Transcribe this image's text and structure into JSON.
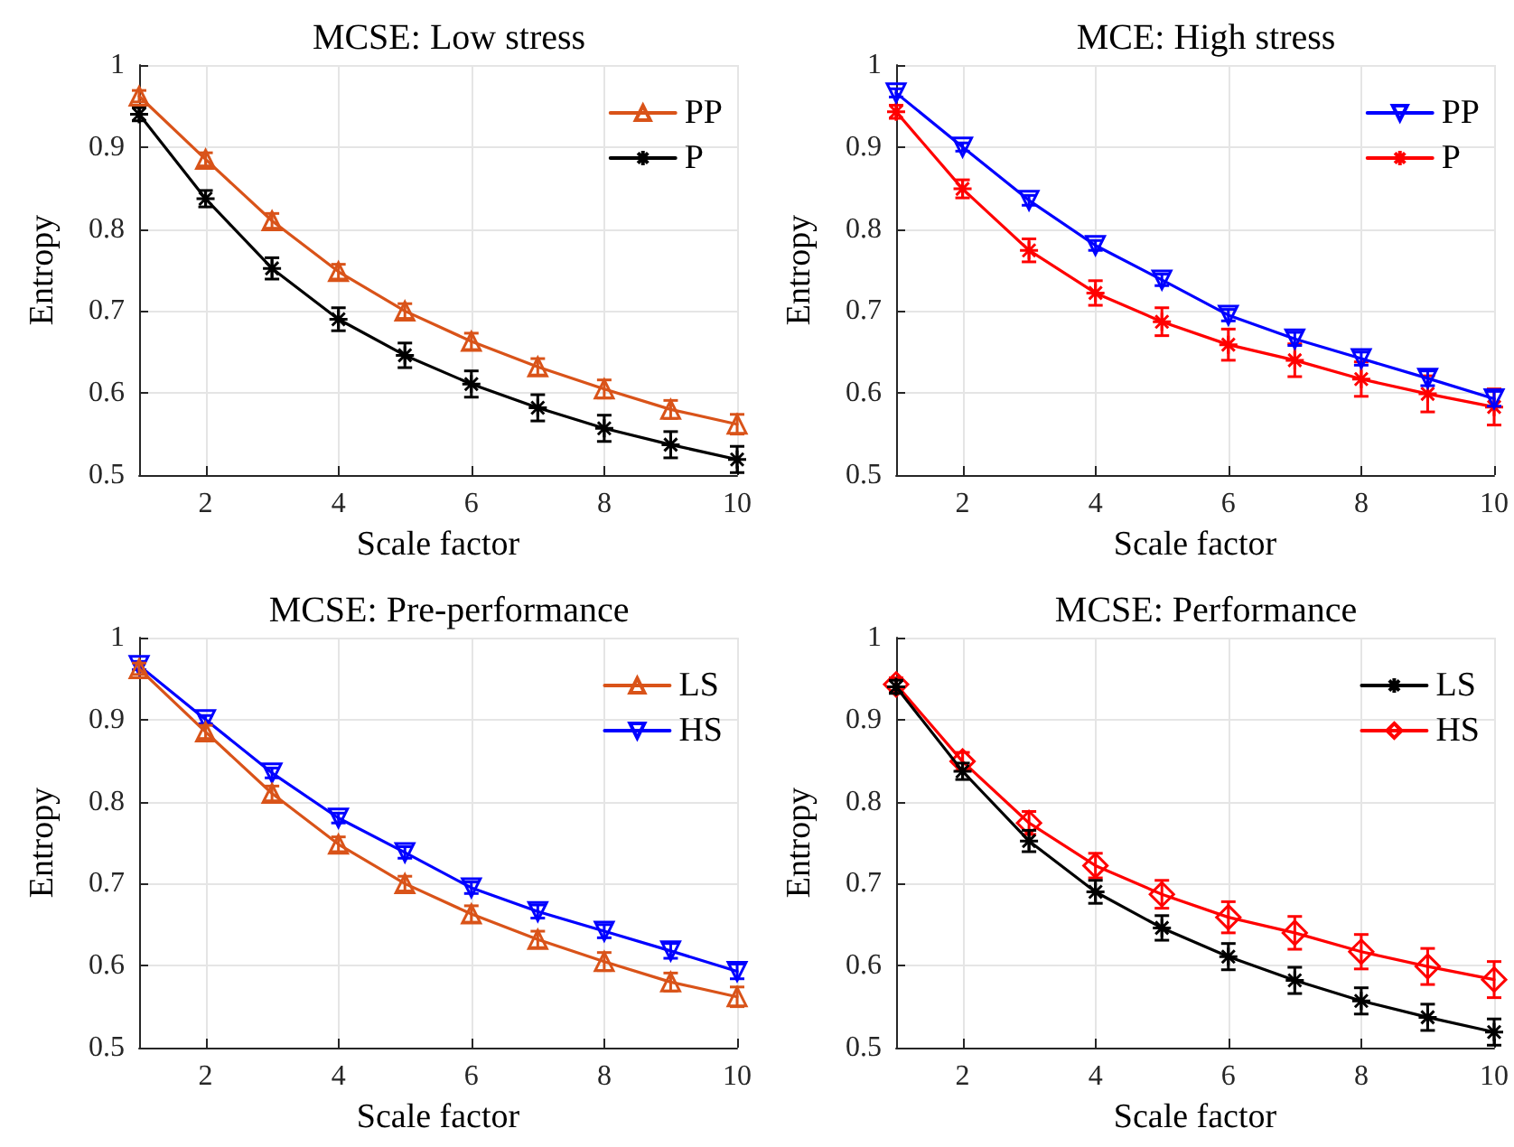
{
  "chart_data": [
    {
      "type": "line",
      "title": "MCSE: Low stress",
      "xlabel": "Scale factor",
      "ylabel": "Entropy",
      "x": [
        1,
        2,
        3,
        4,
        5,
        6,
        7,
        8,
        9,
        10
      ],
      "xlim": [
        1,
        10
      ],
      "xticks": [
        2,
        4,
        6,
        8,
        10
      ],
      "ylim": [
        0.5,
        1
      ],
      "yticks": [
        0.5,
        0.6,
        0.7,
        0.8,
        0.9,
        1
      ],
      "grid": true,
      "legend": "top right",
      "line_style": "solid",
      "series": [
        {
          "name": "PP",
          "color": "#d95319",
          "marker": "triangle",
          "values": [
            0.962,
            0.885,
            0.81,
            0.748,
            0.7,
            0.663,
            0.632,
            0.605,
            0.58,
            0.562
          ],
          "errors": [
            0.007,
            0.008,
            0.009,
            0.009,
            0.009,
            0.01,
            0.01,
            0.011,
            0.011,
            0.012
          ]
        },
        {
          "name": "P",
          "color": "#000000",
          "marker": "cross",
          "values": [
            0.94,
            0.837,
            0.752,
            0.69,
            0.646,
            0.611,
            0.582,
            0.557,
            0.537,
            0.519
          ],
          "errors": [
            0.008,
            0.01,
            0.013,
            0.014,
            0.015,
            0.016,
            0.016,
            0.016,
            0.016,
            0.016
          ]
        }
      ]
    },
    {
      "type": "line",
      "title": "MCE: High stress",
      "xlabel": "Scale factor",
      "ylabel": "Entropy",
      "x": [
        1,
        2,
        3,
        4,
        5,
        6,
        7,
        8,
        9,
        10
      ],
      "xlim": [
        1,
        10
      ],
      "xticks": [
        2,
        4,
        6,
        8,
        10
      ],
      "ylim": [
        0.5,
        1
      ],
      "yticks": [
        0.5,
        0.6,
        0.7,
        0.8,
        0.9,
        1
      ],
      "grid": true,
      "legend": "top right",
      "line_style": "solid",
      "series": [
        {
          "name": "PP",
          "color": "#0000ff",
          "marker": "triangle-down",
          "values": [
            0.966,
            0.9,
            0.835,
            0.78,
            0.738,
            0.695,
            0.666,
            0.642,
            0.618,
            0.593
          ],
          "errors": [
            0.005,
            0.005,
            0.006,
            0.006,
            0.007,
            0.007,
            0.008,
            0.008,
            0.009,
            0.009
          ]
        },
        {
          "name": "P",
          "color": "#ff0000",
          "marker": "cross",
          "values": [
            0.943,
            0.849,
            0.774,
            0.722,
            0.687,
            0.659,
            0.64,
            0.617,
            0.599,
            0.583
          ],
          "errors": [
            0.008,
            0.011,
            0.014,
            0.015,
            0.017,
            0.019,
            0.02,
            0.021,
            0.022,
            0.022
          ]
        }
      ]
    },
    {
      "type": "line",
      "title": "MCSE: Pre-performance",
      "xlabel": "Scale factor",
      "ylabel": "Entropy",
      "x": [
        1,
        2,
        3,
        4,
        5,
        6,
        7,
        8,
        9,
        10
      ],
      "xlim": [
        1,
        10
      ],
      "xticks": [
        2,
        4,
        6,
        8,
        10
      ],
      "ylim": [
        0.5,
        1
      ],
      "yticks": [
        0.5,
        0.6,
        0.7,
        0.8,
        0.9,
        1
      ],
      "grid": true,
      "legend": "top right",
      "line_style": "solid",
      "series": [
        {
          "name": "LS",
          "color": "#d95319",
          "marker": "triangle",
          "values": [
            0.962,
            0.885,
            0.81,
            0.748,
            0.7,
            0.663,
            0.632,
            0.605,
            0.58,
            0.562
          ],
          "errors": [
            0.007,
            0.008,
            0.009,
            0.009,
            0.009,
            0.01,
            0.01,
            0.011,
            0.011,
            0.012
          ]
        },
        {
          "name": "HS",
          "color": "#0000ff",
          "marker": "triangle-down",
          "values": [
            0.966,
            0.9,
            0.835,
            0.78,
            0.738,
            0.695,
            0.666,
            0.642,
            0.618,
            0.593
          ],
          "errors": [
            0.005,
            0.005,
            0.006,
            0.006,
            0.007,
            0.007,
            0.008,
            0.008,
            0.009,
            0.009
          ]
        }
      ]
    },
    {
      "type": "line",
      "title": "MCSE: Performance",
      "xlabel": "Scale factor",
      "ylabel": "Entropy",
      "x": [
        1,
        2,
        3,
        4,
        5,
        6,
        7,
        8,
        9,
        10
      ],
      "xlim": [
        1,
        10
      ],
      "xticks": [
        2,
        4,
        6,
        8,
        10
      ],
      "ylim": [
        0.5,
        1
      ],
      "yticks": [
        0.5,
        0.6,
        0.7,
        0.8,
        0.9,
        1
      ],
      "grid": true,
      "legend": "top right",
      "line_style": "solid",
      "series": [
        {
          "name": "LS",
          "color": "#000000",
          "marker": "cross",
          "values": [
            0.94,
            0.837,
            0.752,
            0.69,
            0.646,
            0.611,
            0.582,
            0.557,
            0.537,
            0.519
          ],
          "errors": [
            0.008,
            0.01,
            0.013,
            0.014,
            0.015,
            0.016,
            0.016,
            0.016,
            0.016,
            0.016
          ]
        },
        {
          "name": "HS",
          "color": "#ff0000",
          "marker": "diamond",
          "values": [
            0.943,
            0.849,
            0.774,
            0.722,
            0.687,
            0.659,
            0.64,
            0.617,
            0.599,
            0.583
          ],
          "errors": [
            0.008,
            0.011,
            0.014,
            0.015,
            0.017,
            0.019,
            0.02,
            0.021,
            0.022,
            0.022
          ]
        }
      ]
    }
  ]
}
